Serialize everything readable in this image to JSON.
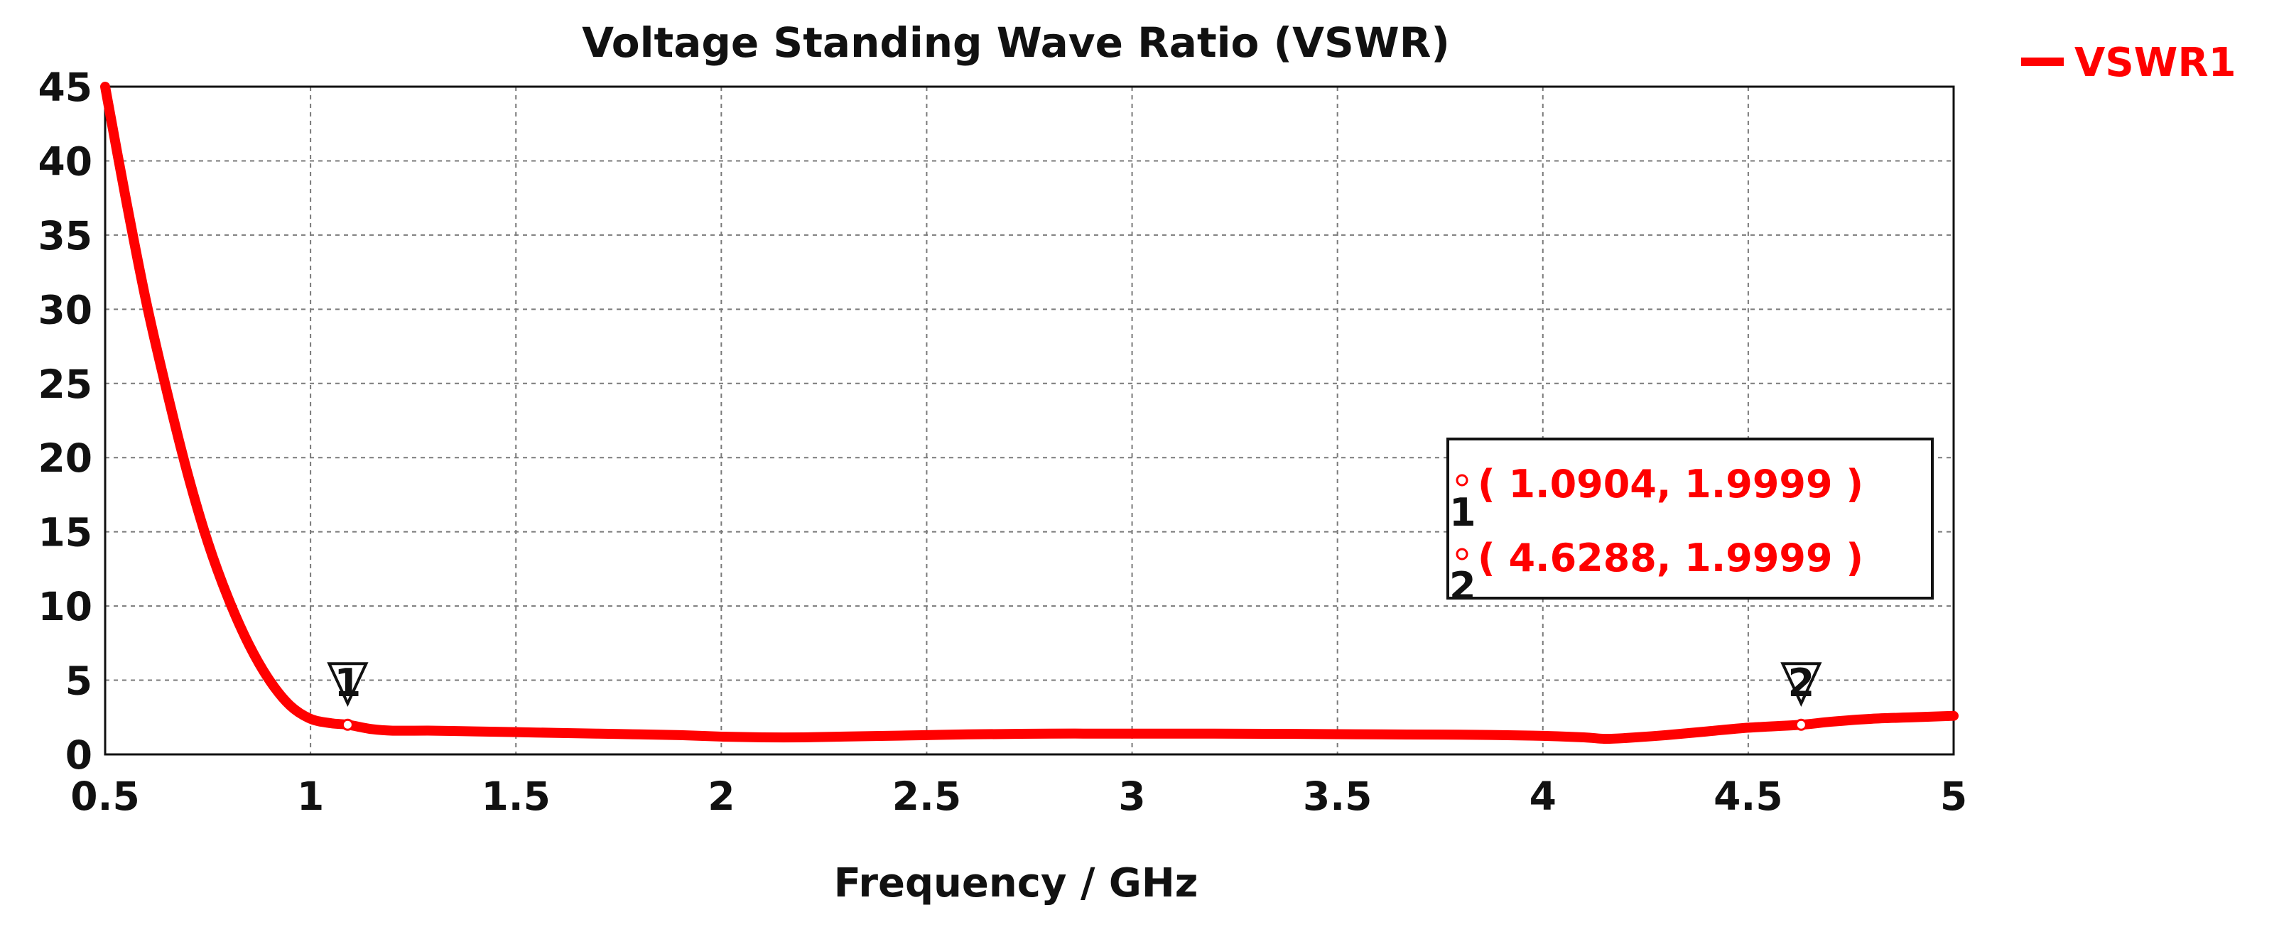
{
  "chart_data": {
    "type": "line",
    "title": "Voltage Standing Wave Ratio (VSWR)",
    "xlabel": "Frequency / GHz",
    "ylabel": "",
    "xlim": [
      0.5,
      5
    ],
    "ylim": [
      0,
      45
    ],
    "xticks": [
      0.5,
      1,
      1.5,
      2,
      2.5,
      3,
      3.5,
      4,
      4.5,
      5
    ],
    "xtick_labels": [
      "0.5",
      "1",
      "1.5",
      "2",
      "2.5",
      "3",
      "3.5",
      "4",
      "4.5",
      "5"
    ],
    "yticks": [
      0,
      5,
      10,
      15,
      20,
      25,
      30,
      35,
      40,
      45
    ],
    "ytick_labels": [
      "0",
      "5",
      "10",
      "15",
      "20",
      "25",
      "30",
      "35",
      "40",
      "45"
    ],
    "grid": true,
    "legend_position": "top-right, outside plot",
    "colors": {
      "series": "#ff0000",
      "text": "#111111",
      "grid": "#7a7a7a"
    },
    "series": [
      {
        "name": "VSWR1",
        "x": [
          0.5,
          0.55,
          0.6,
          0.65,
          0.7,
          0.75,
          0.8,
          0.85,
          0.9,
          0.95,
          1.0,
          1.05,
          1.0904,
          1.15,
          1.2,
          1.3,
          1.4,
          1.5,
          1.6,
          1.7,
          1.8,
          1.9,
          2.0,
          2.1,
          2.2,
          2.3,
          2.4,
          2.5,
          2.6,
          2.8,
          3.0,
          3.2,
          3.4,
          3.6,
          3.8,
          3.9,
          4.0,
          4.1,
          4.15,
          4.2,
          4.3,
          4.4,
          4.5,
          4.6288,
          4.7,
          4.8,
          4.9,
          5.0
        ],
        "values": [
          45,
          37.5,
          30.5,
          24.5,
          19.0,
          14.3,
          10.5,
          7.4,
          5.0,
          3.3,
          2.4,
          2.1,
          1.9999,
          1.7,
          1.6,
          1.6,
          1.55,
          1.5,
          1.45,
          1.4,
          1.35,
          1.3,
          1.2,
          1.15,
          1.15,
          1.2,
          1.25,
          1.3,
          1.35,
          1.4,
          1.4,
          1.4,
          1.38,
          1.35,
          1.33,
          1.3,
          1.25,
          1.15,
          1.05,
          1.1,
          1.3,
          1.55,
          1.8,
          1.9999,
          2.2,
          2.4,
          2.5,
          2.6
        ]
      }
    ],
    "markers": [
      {
        "id": "1",
        "x": 1.0904,
        "y": 1.9999,
        "label": "( 1.0904, 1.9999 )"
      },
      {
        "id": "2",
        "x": 4.6288,
        "y": 1.9999,
        "label": "( 4.6288, 1.9999 )"
      }
    ]
  }
}
